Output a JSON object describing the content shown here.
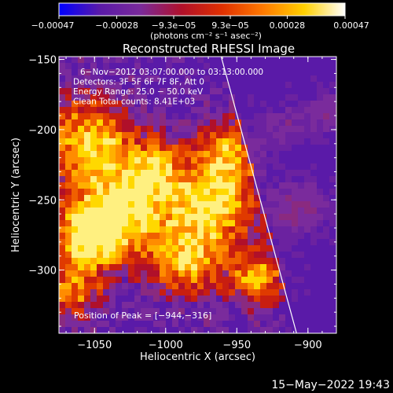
{
  "chart_data": {
    "type": "heatmap",
    "title": "Reconstructed RHESSI Image",
    "xlabel": "Heliocentric X (arcsec)",
    "ylabel": "Heliocentric Y (arcsec)",
    "xlim": [
      -1075,
      -880
    ],
    "ylim": [
      -345,
      -148
    ],
    "x_ticks": [
      -1050,
      -1000,
      -950,
      -900
    ],
    "x_tick_labels": [
      "−1050",
      "−1000",
      "−950",
      "−900"
    ],
    "y_ticks": [
      -150,
      -200,
      -250,
      -300
    ],
    "y_tick_labels": [
      "−150",
      "−200",
      "−250",
      "−300"
    ],
    "colorbar": {
      "min": -0.00047,
      "max": 0.00047,
      "tick_values": [
        -0.00047,
        -0.00028,
        -9.3e-05,
        9.3e-05,
        0.00028,
        0.00047
      ],
      "tick_labels": [
        "−0.00047",
        "−0.00028",
        "−9.3e−05",
        "9.3e−05",
        "0.00028",
        "0.00047"
      ],
      "units": "(photons cm⁻² s⁻¹ asec⁻²)",
      "colors": [
        "#0000ff",
        "#5a1aa8",
        "#7a2a9a",
        "#b0102a",
        "#e03000",
        "#ff7a00",
        "#ffd000",
        "#ffffff"
      ]
    },
    "annotations": [
      "6−Nov−2012 03:07:00.000 to 03:13:00.000",
      "Detectors: 3F 5F 6F 7F 8F, Att 0",
      "Energy Range: 25.0 − 50.0 keV",
      "Clean     Total counts: 8.41E+03"
    ],
    "peak_label": "Position of Peak = [−944,−316]",
    "peak": [
      -944,
      -316
    ],
    "limb_line": [
      [
        -961,
        -148
      ],
      [
        -908,
        -345
      ]
    ],
    "grid": false
  },
  "timestamp": "15−May−2022 19:43"
}
